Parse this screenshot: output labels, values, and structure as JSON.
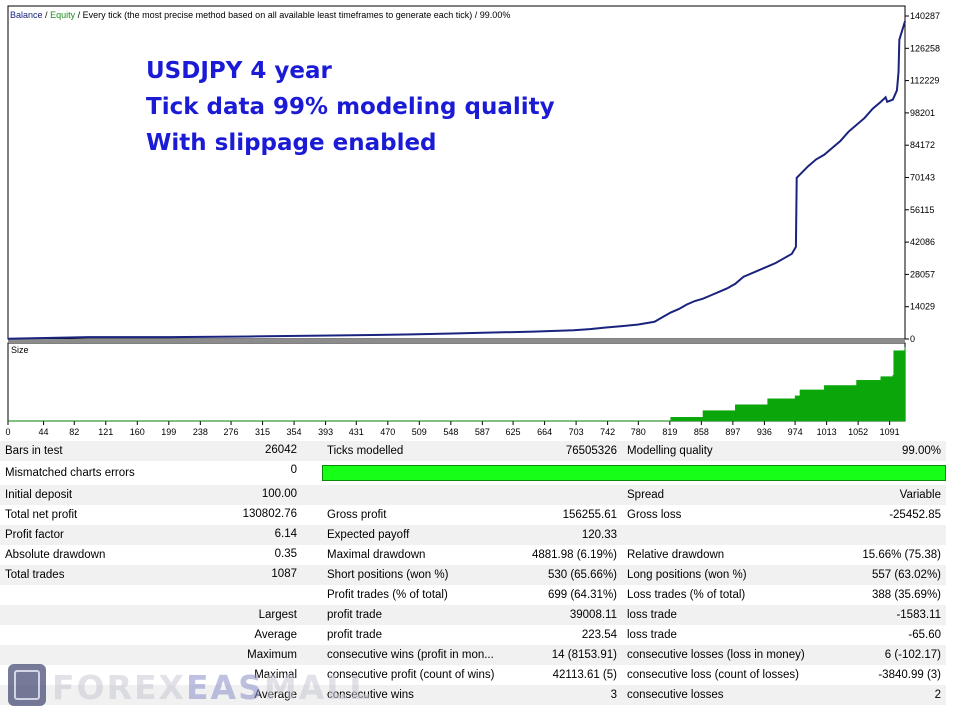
{
  "chart_data": {
    "type": "line",
    "title": "Every tick (the most precise method based on all available least timeframes to generate each tick) / 99.00%",
    "legend": [
      "Balance",
      "Equity"
    ],
    "yticks": [
      0,
      14029,
      28057,
      42086,
      56115,
      70143,
      84172,
      98201,
      112229,
      126258,
      140287
    ],
    "ylim": [
      0,
      140287
    ],
    "xticks": [
      0,
      44,
      82,
      121,
      160,
      199,
      238,
      276,
      315,
      354,
      393,
      431,
      470,
      509,
      548,
      587,
      625,
      664,
      703,
      742,
      780,
      819,
      858,
      897,
      936,
      974,
      1013,
      1052,
      1091
    ],
    "xlim": [
      0,
      1110
    ],
    "series": [
      {
        "name": "Balance",
        "color": "#1a237e",
        "x": [
          0,
          100,
          200,
          300,
          400,
          500,
          550,
          600,
          650,
          700,
          720,
          740,
          760,
          780,
          800,
          810,
          820,
          830,
          840,
          850,
          860,
          870,
          880,
          890,
          900,
          910,
          930,
          950,
          970,
          975,
          976,
          990,
          1000,
          1010,
          1020,
          1030,
          1040,
          1050,
          1060,
          1070,
          1080,
          1086,
          1088,
          1095,
          1100,
          1102,
          1103,
          1110
        ],
        "y": [
          100,
          800,
          800,
          1100,
          1500,
          2000,
          2400,
          2800,
          3200,
          3800,
          4300,
          5000,
          5600,
          6300,
          7500,
          9500,
          11500,
          13000,
          15000,
          16500,
          17500,
          19000,
          20500,
          22000,
          24000,
          27000,
          30000,
          33000,
          37000,
          40000,
          70000,
          75000,
          78000,
          80000,
          83000,
          86000,
          90000,
          93000,
          96000,
          100000,
          103000,
          105000,
          103000,
          104000,
          108000,
          116000,
          130000,
          138000
        ]
      }
    ],
    "size_panel": {
      "label": "Size",
      "color": "#0aa60a",
      "x": [
        0,
        800,
        820,
        860,
        900,
        940,
        974,
        980,
        1010,
        1050,
        1080,
        1095,
        1096,
        1110
      ],
      "height": [
        0.0,
        0.0,
        0.05,
        0.14,
        0.22,
        0.3,
        0.34,
        0.42,
        0.48,
        0.55,
        0.6,
        0.62,
        0.95,
        1.0
      ]
    }
  },
  "annotation": {
    "line1": "USDJPY 4 year",
    "line2": "Tick data 99% modeling quality",
    "line3": "With slippage enabled"
  },
  "report": {
    "rows": [
      [
        "Bars in test",
        "26042",
        "Ticks modelled",
        "76505326",
        "Modelling quality",
        "99.00%"
      ],
      [
        "Mismatched charts errors",
        "0",
        "",
        "",
        "",
        ""
      ],
      [
        "Initial deposit",
        "100.00",
        "",
        "",
        "Spread",
        "Variable"
      ],
      [
        "Total net profit",
        "130802.76",
        "Gross profit",
        "156255.61",
        "Gross loss",
        "-25452.85"
      ],
      [
        "Profit factor",
        "6.14",
        "Expected payoff",
        "120.33",
        "",
        ""
      ],
      [
        "Absolute drawdown",
        "0.35",
        "Maximal drawdown",
        "4881.98 (6.19%)",
        "Relative drawdown",
        "15.66% (75.38)"
      ],
      [
        "Total trades",
        "1087",
        "Short positions (won %)",
        "530 (65.66%)",
        "Long positions (won %)",
        "557 (63.02%)"
      ],
      [
        "",
        "",
        "Profit trades (% of total)",
        "699 (64.31%)",
        "Loss trades (% of total)",
        "388 (35.69%)"
      ],
      [
        "",
        "Largest",
        "profit trade",
        "39008.11",
        "loss trade",
        "-1583.11"
      ],
      [
        "",
        "Average",
        "profit trade",
        "223.54",
        "loss trade",
        "-65.60"
      ],
      [
        "",
        "Maximum",
        "consecutive wins (profit in mon...",
        "14 (8153.91)",
        "consecutive losses (loss in money)",
        "6 (-102.17)"
      ],
      [
        "",
        "Maximal",
        "consecutive profit (count of wins)",
        "42113.61 (5)",
        "consecutive loss (count of losses)",
        "-3840.99 (3)"
      ],
      [
        "",
        "Average",
        "consecutive wins",
        "3",
        "consecutive losses",
        "2"
      ]
    ],
    "modelling_quality_fraction": 1.0,
    "quality_bar_color": "#17ff17"
  },
  "watermark": {
    "part1": "FOREX",
    "part2": "EAS",
    "part3": "MALL"
  }
}
